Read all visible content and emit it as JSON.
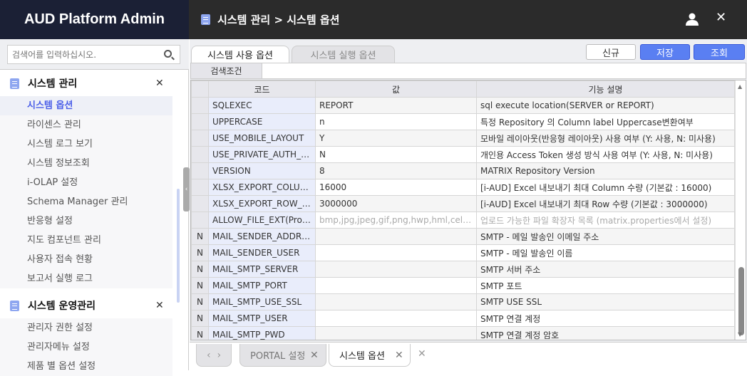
{
  "app": {
    "title": "AUD Platform Admin",
    "breadcrumb": "시스템 관리 > 시스템 옵션",
    "icons": {
      "user": "user-icon",
      "close": "close-icon"
    }
  },
  "sidebar": {
    "search_placeholder": "검색어를 입력하십시오.",
    "groups": [
      {
        "label": "시스템 관리",
        "items": [
          "시스템 옵션",
          "라이센스 관리",
          "시스템 로그 보기",
          "시스템 정보조회",
          "i-OLAP 설정",
          "Schema Manager 관리",
          "반응형 설정",
          "지도 컴포넌트 관리",
          "사용자 접속 현황",
          "보고서 실행 로그"
        ],
        "active": "시스템 옵션"
      },
      {
        "label": "시스템 운영관리",
        "items": [
          "관리자 권한 설정",
          "관리자메뉴 설정",
          "제품 별 옵션 설정"
        ]
      }
    ]
  },
  "main": {
    "tabs": [
      {
        "label": "시스템 사용 옵션",
        "active": true
      },
      {
        "label": "시스템 실행 옵션",
        "active": false
      }
    ],
    "buttons": {
      "new": "신규",
      "save": "저장",
      "search": "조회"
    },
    "search_condition_label": "검색조건",
    "accent": "#5a7ff2",
    "table": {
      "columns": [
        "코드",
        "값",
        "기능 설명"
      ],
      "rows": [
        {
          "flag": "",
          "code": "SQLEXEC",
          "value": "REPORT",
          "desc": "sql execute location(SERVER or REPORT)"
        },
        {
          "flag": "",
          "code": "UPPERCASE",
          "value": "n",
          "desc": "특정 Repository 의 Column label Uppercase변환여부"
        },
        {
          "flag": "",
          "code": "USE_MOBILE_LAYOUT",
          "value": "Y",
          "desc": "모바일 레이아웃(반응형 레이아웃) 사용 여부 (Y: 사용, N: 미사용)"
        },
        {
          "flag": "",
          "code": "USE_PRIVATE_AUTH_KEY",
          "value": "N",
          "desc": "개인용 Access Token 생성 방식 사용 여부 (Y: 사용, N: 미사용)"
        },
        {
          "flag": "",
          "code": "VERSION",
          "value": "8",
          "desc": "MATRIX Repository Version"
        },
        {
          "flag": "",
          "code": "XLSX_EXPORT_COLUMN...",
          "value": "16000",
          "desc": "[i-AUD] Excel 내보내기 최대 Column 수량 (기본값 : 16000)"
        },
        {
          "flag": "",
          "code": "XLSX_EXPORT_ROW_LIMIT",
          "value": "3000000",
          "desc": "[i-AUD] Excel 내보내기 최대 Row 수량 (기본값 : 3000000)"
        },
        {
          "flag": "",
          "code": "ALLOW_FILE_EXT(Propert...",
          "value": "bmp,jpg,jpeg,gif,png,hwp,hml,cell,doc,d...",
          "desc": "업로드 가능한 파일 확장자 목록 (matrix.properties에서 설정)",
          "disabled": true
        },
        {
          "flag": "N",
          "code": "MAIL_SENDER_ADDRES...",
          "value": "",
          "desc": "SMTP - 메일 발송인 이메일 주소"
        },
        {
          "flag": "N",
          "code": "MAIL_SENDER_USER",
          "value": "",
          "desc": "SMTP - 메일 발송인 이름"
        },
        {
          "flag": "N",
          "code": "MAIL_SMTP_SERVER",
          "value": "",
          "desc": "SMTP 서버 주소"
        },
        {
          "flag": "N",
          "code": "MAIL_SMTP_PORT",
          "value": "",
          "desc": "SMTP 포트"
        },
        {
          "flag": "N",
          "code": "MAIL_SMTP_USE_SSL",
          "value": "",
          "desc": "SMTP USE SSL"
        },
        {
          "flag": "N",
          "code": "MAIL_SMTP_USER",
          "value": "",
          "desc": "SMTP 연결 계정"
        },
        {
          "flag": "N",
          "code": "MAIL_SMTP_PWD",
          "value": "",
          "desc": "SMTP 연결 계정 암호"
        }
      ]
    }
  },
  "bottom_tabs": [
    {
      "label": "PORTAL 설정",
      "active": false
    },
    {
      "label": "시스템 옵션",
      "active": true
    }
  ]
}
